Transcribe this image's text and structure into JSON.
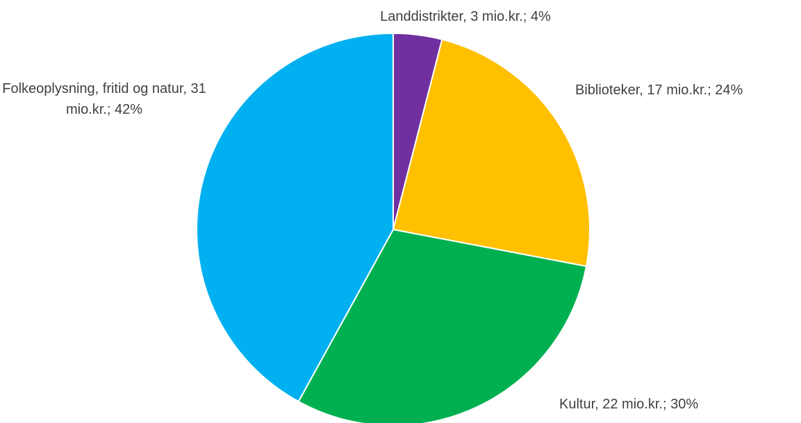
{
  "chart_data": {
    "type": "pie",
    "categories": [
      "Landdistrikter",
      "Biblioteker",
      "Kultur",
      "Folkeoplysning, fritid og natur"
    ],
    "values": [
      4,
      24,
      30,
      42
    ],
    "value_labels": [
      "Landdistrikter, 3 mio.kr.; 4%",
      "Biblioteker, 17 mio.kr.; 24%",
      "Kultur, 22 mio.kr.; 30%",
      "Folkeoplysning, fritid og natur, 31 mio.kr.; 42%"
    ],
    "colors": [
      "#7030a0",
      "#ffc000",
      "#00b050",
      "#00b0f0"
    ]
  }
}
